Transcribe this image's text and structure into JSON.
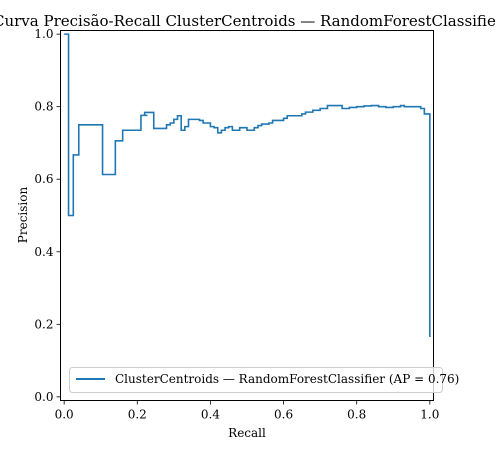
{
  "chart_data": {
    "type": "line",
    "title": "Curva Precisão-Recall ClusterCentroids — RandomForestClassifier",
    "xlabel": "Recall",
    "ylabel": "Precision",
    "xlim": [
      -0.01,
      1.01
    ],
    "ylim": [
      -0.01,
      1.01
    ],
    "x_ticks": [
      "0.0",
      "0.2",
      "0.4",
      "0.6",
      "0.8",
      "1.0"
    ],
    "y_ticks": [
      "0.0",
      "0.2",
      "0.4",
      "0.6",
      "0.8",
      "1.0"
    ],
    "x_tick_values": [
      0.0,
      0.2,
      0.4,
      0.6,
      0.8,
      1.0
    ],
    "y_tick_values": [
      0.0,
      0.2,
      0.4,
      0.6,
      0.8,
      1.0
    ],
    "grid": false,
    "legend_position": "lower-center",
    "step": "post",
    "series": [
      {
        "name": "ClusterCentroids — RandomForestClassifier (AP = 0.76)",
        "color": "#1f77b4",
        "x": [
          0.0,
          0.0,
          0.012,
          0.025,
          0.03,
          0.04,
          0.08,
          0.105,
          0.105,
          0.14,
          0.16,
          0.16,
          0.185,
          0.21,
          0.228,
          0.22,
          0.245,
          0.27,
          0.28,
          0.29,
          0.3,
          0.31,
          0.32,
          0.325,
          0.33,
          0.34,
          0.36,
          0.37,
          0.38,
          0.39,
          0.395,
          0.4,
          0.41,
          0.42,
          0.43,
          0.44,
          0.45,
          0.46,
          0.47,
          0.48,
          0.5,
          0.51,
          0.52,
          0.53,
          0.54,
          0.56,
          0.57,
          0.58,
          0.6,
          0.61,
          0.62,
          0.64,
          0.65,
          0.66,
          0.68,
          0.7,
          0.72,
          0.74,
          0.76,
          0.78,
          0.8,
          0.82,
          0.84,
          0.86,
          0.88,
          0.9,
          0.92,
          0.93,
          0.95,
          0.975,
          0.985,
          0.995,
          1.0
        ],
        "y": [
          1.0,
          1.0,
          0.5,
          0.667,
          0.667,
          0.75,
          0.75,
          0.613,
          0.613,
          0.706,
          0.706,
          0.735,
          0.735,
          0.776,
          0.776,
          0.784,
          0.74,
          0.74,
          0.75,
          0.755,
          0.765,
          0.775,
          0.735,
          0.735,
          0.745,
          0.765,
          0.765,
          0.762,
          0.755,
          0.755,
          0.755,
          0.745,
          0.742,
          0.728,
          0.735,
          0.742,
          0.745,
          0.735,
          0.735,
          0.742,
          0.735,
          0.735,
          0.742,
          0.748,
          0.752,
          0.755,
          0.762,
          0.762,
          0.768,
          0.775,
          0.775,
          0.775,
          0.78,
          0.785,
          0.79,
          0.795,
          0.803,
          0.803,
          0.795,
          0.798,
          0.8,
          0.802,
          0.803,
          0.8,
          0.798,
          0.8,
          0.803,
          0.8,
          0.8,
          0.795,
          0.78,
          0.78,
          0.165
        ]
      }
    ]
  }
}
